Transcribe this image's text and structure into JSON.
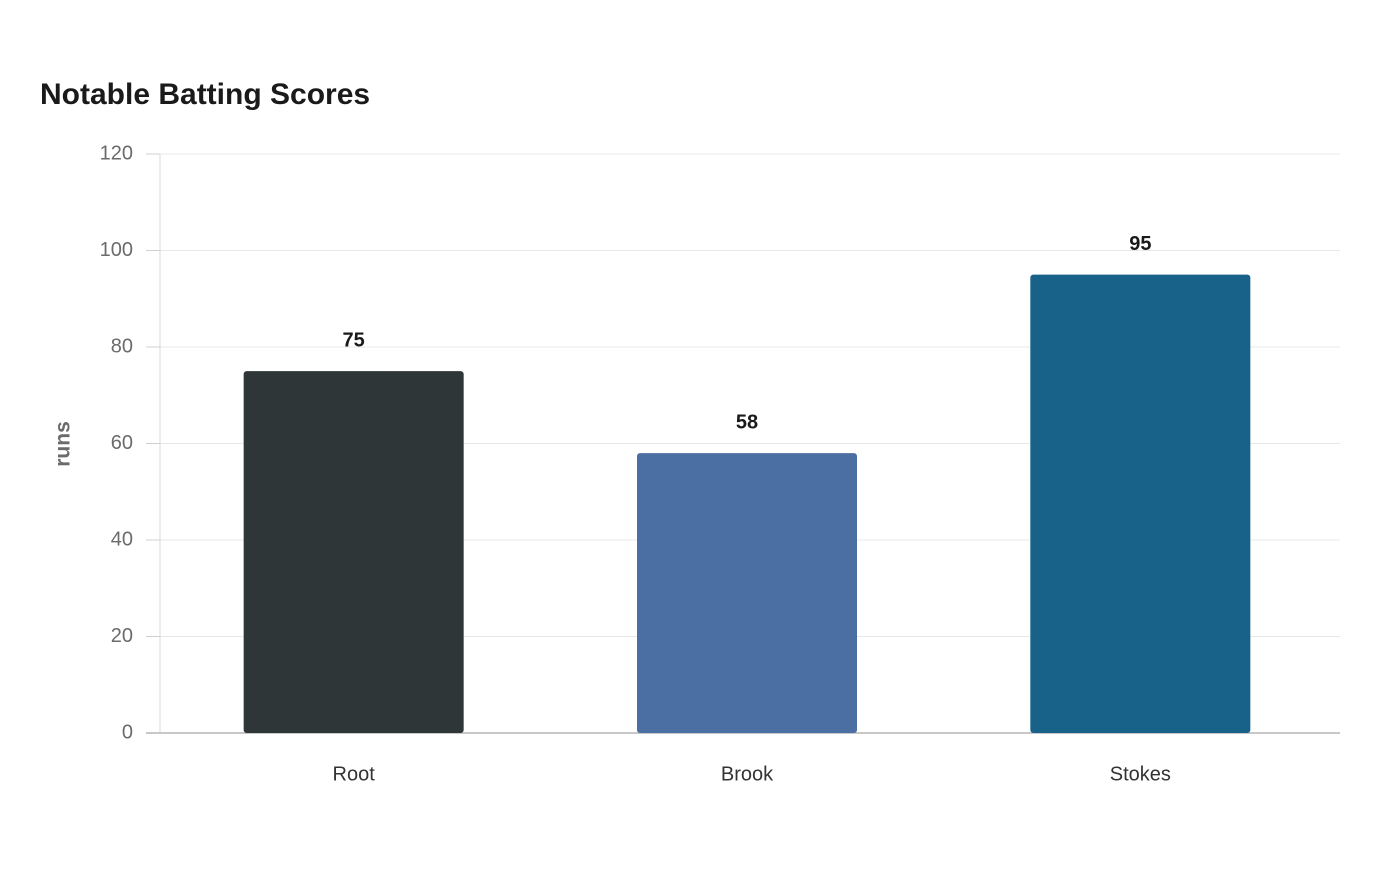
{
  "chart_data": {
    "type": "bar",
    "title": "Notable Batting Scores",
    "y_label": "runs",
    "categories": [
      "Root",
      "Brook",
      "Stokes"
    ],
    "values": [
      75,
      58,
      95
    ],
    "colors": [
      "#2e3638",
      "#4b6ea3",
      "#186188"
    ],
    "ylim": [
      0,
      120
    ],
    "yticks": [
      0,
      20,
      40,
      60,
      80,
      100,
      120
    ],
    "grid": true
  }
}
